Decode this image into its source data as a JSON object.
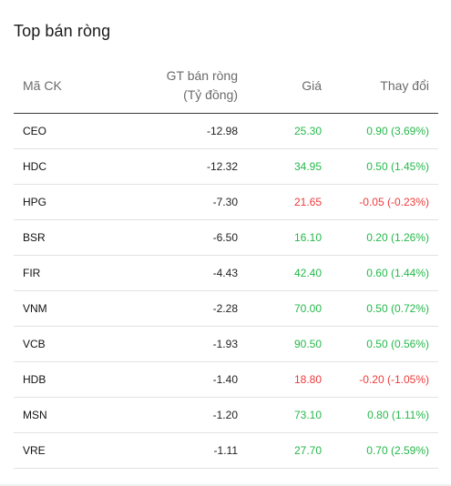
{
  "title": "Top bán ròng",
  "headers": {
    "symbol": "Mã CK",
    "value_line1": "GT bán ròng",
    "value_line2": "(Tỷ đồng)",
    "price": "Giá",
    "change": "Thay đổi"
  },
  "colors": {
    "up": "#26b84b",
    "down": "#ee3a3a"
  },
  "rows": [
    {
      "symbol": "CEO",
      "value": "-12.98",
      "price": "25.30",
      "change": "0.90 (3.69%)",
      "trend": "up"
    },
    {
      "symbol": "HDC",
      "value": "-12.32",
      "price": "34.95",
      "change": "0.50 (1.45%)",
      "trend": "up"
    },
    {
      "symbol": "HPG",
      "value": "-7.30",
      "price": "21.65",
      "change": "-0.05 (-0.23%)",
      "trend": "down"
    },
    {
      "symbol": "BSR",
      "value": "-6.50",
      "price": "16.10",
      "change": "0.20 (1.26%)",
      "trend": "up"
    },
    {
      "symbol": "FIR",
      "value": "-4.43",
      "price": "42.40",
      "change": "0.60 (1.44%)",
      "trend": "up"
    },
    {
      "symbol": "VNM",
      "value": "-2.28",
      "price": "70.00",
      "change": "0.50 (0.72%)",
      "trend": "up"
    },
    {
      "symbol": "VCB",
      "value": "-1.93",
      "price": "90.50",
      "change": "0.50 (0.56%)",
      "trend": "up"
    },
    {
      "symbol": "HDB",
      "value": "-1.40",
      "price": "18.80",
      "change": "-0.20 (-1.05%)",
      "trend": "down"
    },
    {
      "symbol": "MSN",
      "value": "-1.20",
      "price": "73.10",
      "change": "0.80 (1.11%)",
      "trend": "up"
    },
    {
      "symbol": "VRE",
      "value": "-1.11",
      "price": "27.70",
      "change": "0.70 (2.59%)",
      "trend": "up"
    }
  ]
}
